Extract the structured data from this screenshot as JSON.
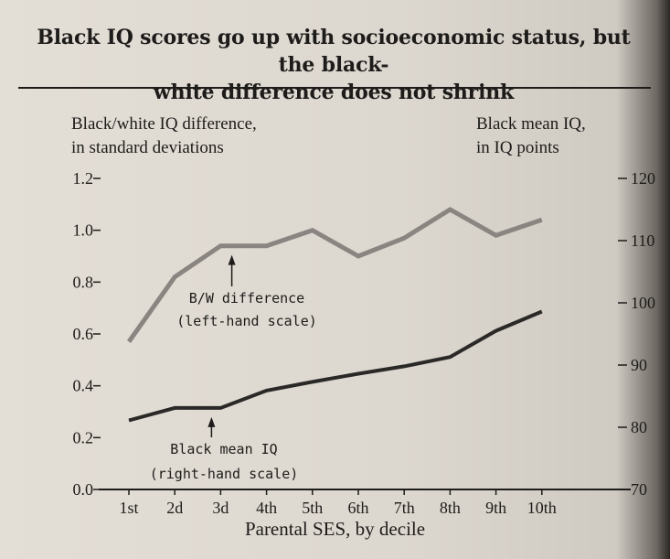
{
  "chart_data": {
    "type": "line",
    "title": "Black IQ scores go up with socioeconomic status, but the black-white difference does not shrink",
    "title_line1": "Black IQ scores go up with socioeconomic status, but the black-",
    "title_line2": "white difference does not shrink",
    "xlabel": "Parental SES, by decile",
    "left_axis_label_line1": "Black/white IQ difference,",
    "left_axis_label_line2": "in standard deviations",
    "right_axis_label_line1": "Black mean IQ,",
    "right_axis_label_line2": "in IQ points",
    "categories": [
      "1st",
      "2d",
      "3d",
      "4th",
      "5th",
      "6th",
      "7th",
      "8th",
      "9th",
      "10th"
    ],
    "left_ylim": [
      0.0,
      1.2
    ],
    "left_yticks": [
      "0.0",
      "0.2",
      "0.4",
      "0.6",
      "0.8",
      "1.0",
      "1.2"
    ],
    "right_ylim": [
      70,
      120
    ],
    "right_yticks": [
      "70",
      "80",
      "90",
      "100",
      "110",
      "120"
    ],
    "series": [
      {
        "axis": "left",
        "color": "#8a8580",
        "values": [
          0.57,
          0.82,
          0.94,
          0.94,
          1.0,
          0.9,
          0.97,
          1.08,
          0.98,
          1.04
        ]
      },
      {
        "axis": "right",
        "color": "#2b2927",
        "values": [
          81.1,
          83.1,
          83.1,
          85.9,
          87.3,
          88.6,
          89.8,
          91.3,
          95.5,
          98.6
        ]
      }
    ],
    "annotations": [
      {
        "line1": "B/W difference",
        "line2": "(left-hand scale)",
        "points_to": "4th",
        "series": 0
      },
      {
        "line1": "Black mean IQ",
        "line2": "(right-hand scale)",
        "points_to": "3d",
        "series": 1
      }
    ],
    "grid": false,
    "legend": "none"
  }
}
